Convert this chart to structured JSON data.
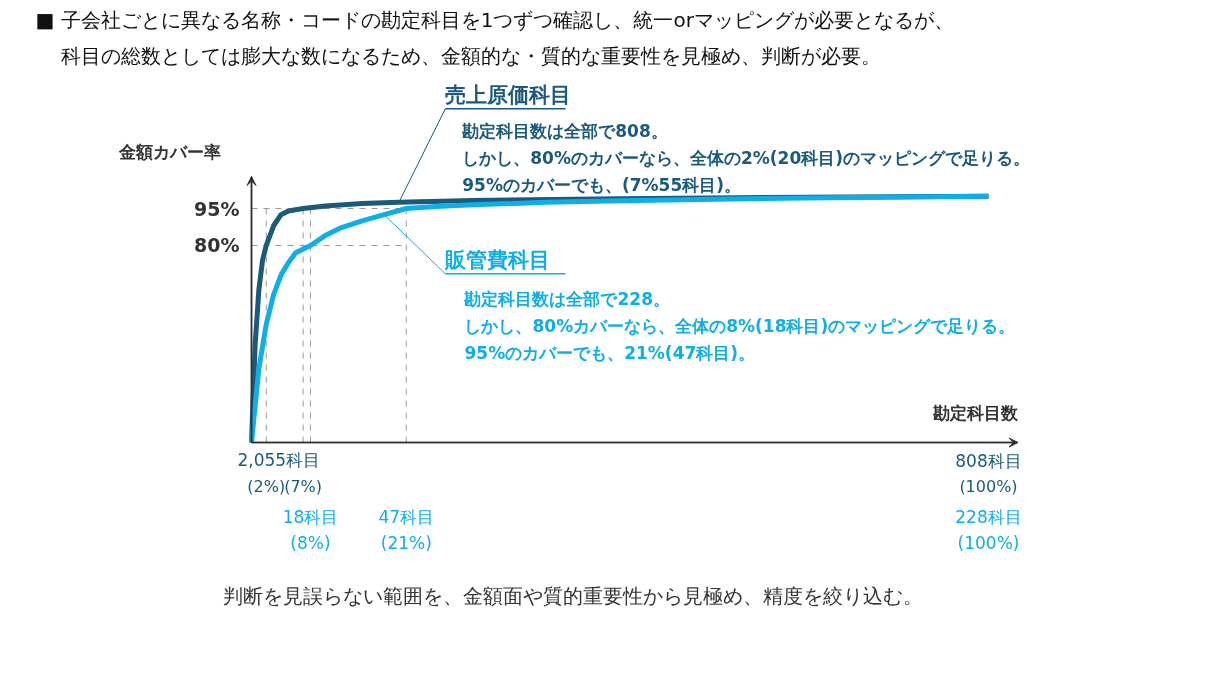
{
  "chart_data": {
    "type": "line",
    "title": "■ 子会社ごとに異なる名称・コードの勘定科目を1つずつ確認し、統一orマッピングが必要となるが、",
    "subtitle": "科目の総数としては膨大な数になるため、金額的な・質的な重要性を見極め、判断が必要。",
    "xlabel": "勘定科目数",
    "ylabel": "金額カバー率",
    "series": [
      {
        "name": "売上原価科目",
        "color": "#1b5a7a",
        "x": [
          0,
          0.5,
          1,
          1.5,
          2,
          3,
          4,
          5,
          7,
          10,
          15,
          20,
          30,
          50,
          75,
          100
        ],
        "values": [
          0,
          40,
          62,
          74,
          80,
          88,
          92.5,
          94,
          95,
          96,
          97,
          97.5,
          98.3,
          99,
          99.6,
          100
        ]
      },
      {
        "name": "販管費科目",
        "color": "#10aee8",
        "x": [
          0,
          0.5,
          1,
          2,
          3,
          4,
          5,
          6,
          8,
          10,
          12,
          15,
          18,
          21,
          25,
          30,
          40,
          50,
          75,
          100
        ],
        "values": [
          0,
          15,
          30,
          48,
          60,
          68,
          73,
          77,
          80,
          84,
          87,
          90,
          92.5,
          95,
          95.8,
          96.5,
          97.5,
          98.2,
          99.3,
          100
        ]
      }
    ],
    "xlim": [
      0,
      104
    ],
    "ylim": [
      0,
      108
    ],
    "xticks": [
      {
        "value": 2,
        "label": "(2%)"
      },
      {
        "value": 7,
        "label": "(7%)"
      },
      {
        "value": 100,
        "label": "(100%)"
      }
    ],
    "yticks": [
      {
        "value": 80,
        "label": "80%"
      },
      {
        "value": 95,
        "label": "95%"
      }
    ],
    "grid": false,
    "legend": false,
    "line_style": "solid",
    "ref_lines": [
      {
        "axis": "x",
        "value": 2,
        "color": "#999999",
        "line_style": "dashed"
      },
      {
        "axis": "x",
        "value": 7,
        "color": "#999999",
        "line_style": "dashed"
      },
      {
        "axis": "x",
        "value": 8,
        "color": "#999999",
        "line_style": "dashed"
      },
      {
        "axis": "x",
        "value": 21,
        "color": "#999999",
        "line_style": "dashed"
      },
      {
        "axis": "y",
        "value": 80,
        "color": "#999999",
        "line_style": "dashed"
      },
      {
        "axis": "y",
        "value": 95,
        "color": "#999999",
        "line_style": "dashed"
      }
    ],
    "annotations": [
      {
        "text": "勘定科目数は全部で808。",
        "x": 20,
        "y": 97.5
      },
      "しかし、80%のカバーなら、全体の2%(20科目)のマッピングで足りる。",
      "95%のカバーでも、(7%55科目)。",
      "勘定科目数は全部で228。",
      "しかし、80%カバーなら、全体の8%(18科目)のマッピングで足りる。",
      "95%のカバーでも、21%(47科目)。",
      "2,055科目",
      "808科目",
      "18科目",
      "(8%)",
      "47科目",
      "(21%)",
      "228科目",
      "(100%)",
      "判断を見誤らない範囲を、金額面や質的重要性から見極め、精度を絞り込む。"
    ]
  }
}
